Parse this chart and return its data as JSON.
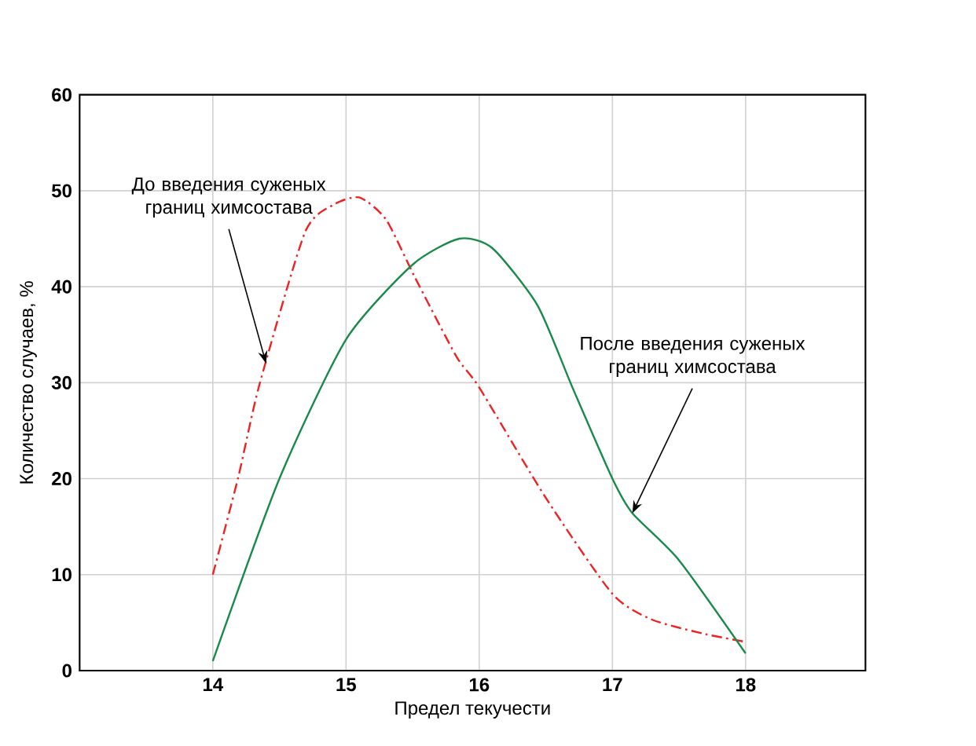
{
  "chart_data": {
    "type": "line",
    "xlabel": "Предел текучести",
    "ylabel": "Количество случаев, %",
    "xlim": [
      13,
      18.9
    ],
    "xticks": [
      14,
      15,
      16,
      17,
      18
    ],
    "ylim": [
      0,
      60
    ],
    "yticks": [
      0,
      10,
      20,
      30,
      40,
      50,
      60
    ],
    "grid": true,
    "series": [
      {
        "color": "#ee2222",
        "line_style": "dashed",
        "x": [
          14,
          14.19,
          14.35,
          14.69,
          14.9,
          15.1,
          15.3,
          15.52,
          15.83,
          16,
          16.5,
          17,
          17.3,
          17.7,
          18
        ],
        "values": [
          10,
          20.1,
          29.8,
          45.6,
          48.5,
          49.3,
          47,
          40.9,
          32.7,
          29.5,
          18,
          8,
          5.3,
          3.8,
          3
        ]
      },
      {
        "color": "#1a8a4a",
        "line_style": "solid",
        "x": [
          14,
          14.5,
          15,
          15.5,
          15.85,
          16.1,
          16.44,
          16.7,
          17,
          17.15,
          17.5,
          18
        ],
        "values": [
          1,
          20,
          34.5,
          42.3,
          45,
          44,
          38,
          29.5,
          20,
          16.4,
          11.5,
          1.8
        ]
      }
    ],
    "annotations": [
      {
        "text": "До введения суженых границ химсостава",
        "x": 14.4,
        "y": 32
      },
      {
        "text": "После введения суженых границ химсостава",
        "x": 17.15,
        "y": 16.4
      }
    ]
  }
}
